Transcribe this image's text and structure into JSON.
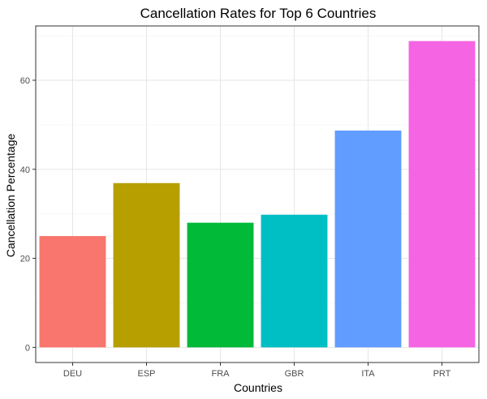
{
  "chart_data": {
    "type": "bar",
    "title": "Cancellation Rates for Top 6 Countries",
    "xlabel": "Countries",
    "ylabel": "Cancellation Percentage",
    "categories": [
      "DEU",
      "ESP",
      "FRA",
      "GBR",
      "ITA",
      "PRT"
    ],
    "values": [
      25.0,
      36.9,
      28.0,
      29.8,
      48.7,
      68.8
    ],
    "colors": [
      "#F8766D",
      "#B79F00",
      "#00BA38",
      "#00BFC4",
      "#619CFF",
      "#F564E3"
    ],
    "ylim": [
      -3.4,
      72.2
    ],
    "yticks": [
      0,
      20,
      40,
      60
    ],
    "grid": true,
    "legend": "none"
  }
}
